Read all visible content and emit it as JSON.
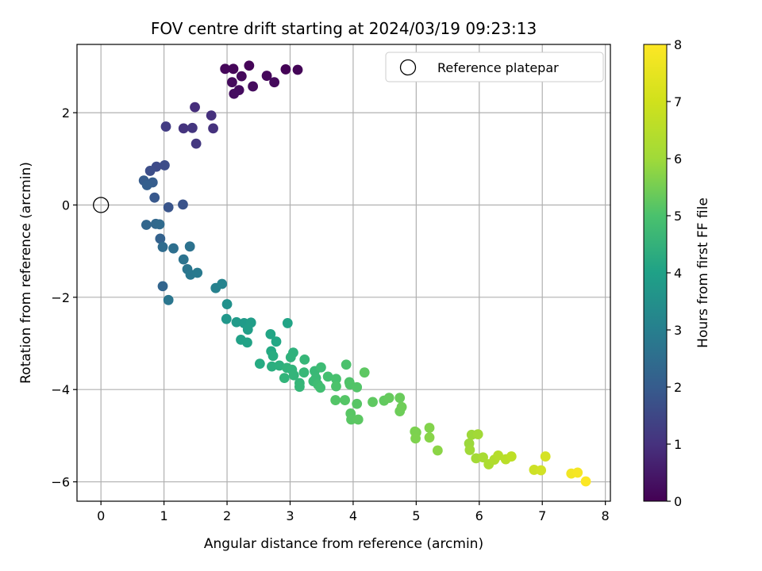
{
  "chart_data": {
    "type": "scatter",
    "title": "FOV centre drift starting at 2024/03/19 09:23:13",
    "xlabel": "Angular distance from reference (arcmin)",
    "ylabel": "Rotation from reference (arcmin)",
    "xlim": [
      -0.38,
      8.08
    ],
    "ylim": [
      -6.42,
      3.48
    ],
    "x_ticks": [
      0,
      1,
      2,
      3,
      4,
      5,
      6,
      7,
      8
    ],
    "y_ticks": [
      -6,
      -4,
      -2,
      0,
      2
    ],
    "grid": true,
    "legend": {
      "position": "top-right",
      "entries": [
        "Reference platepar"
      ]
    },
    "reference_point": {
      "x": 0,
      "y": 0,
      "marker": "open-circle",
      "label": "Reference platepar"
    },
    "colormap": "viridis",
    "colorbar": {
      "label": "Hours from first FF file",
      "range": [
        0,
        8
      ],
      "ticks": [
        0,
        1,
        2,
        3,
        4,
        5,
        6,
        7,
        8
      ]
    },
    "points": [
      {
        "x": 2.93,
        "y": 2.94,
        "t": 0.05
      },
      {
        "x": 3.12,
        "y": 2.93,
        "t": 0.08
      },
      {
        "x": 2.35,
        "y": 3.02,
        "t": 0.1
      },
      {
        "x": 2.1,
        "y": 2.95,
        "t": 0.12
      },
      {
        "x": 1.97,
        "y": 2.95,
        "t": 0.14
      },
      {
        "x": 2.63,
        "y": 2.8,
        "t": 0.16
      },
      {
        "x": 2.23,
        "y": 2.79,
        "t": 0.18
      },
      {
        "x": 2.75,
        "y": 2.66,
        "t": 0.2
      },
      {
        "x": 2.08,
        "y": 2.66,
        "t": 0.22
      },
      {
        "x": 2.41,
        "y": 2.57,
        "t": 0.24
      },
      {
        "x": 2.19,
        "y": 2.49,
        "t": 0.26
      },
      {
        "x": 2.11,
        "y": 2.41,
        "t": 0.28
      },
      {
        "x": 1.49,
        "y": 2.12,
        "t": 1.05
      },
      {
        "x": 1.75,
        "y": 1.94,
        "t": 1.1
      },
      {
        "x": 1.03,
        "y": 1.7,
        "t": 1.4
      },
      {
        "x": 1.31,
        "y": 1.66,
        "t": 1.2
      },
      {
        "x": 1.45,
        "y": 1.67,
        "t": 1.25
      },
      {
        "x": 1.78,
        "y": 1.66,
        "t": 1.15
      },
      {
        "x": 1.51,
        "y": 1.33,
        "t": 1.3
      },
      {
        "x": 1.01,
        "y": 0.86,
        "t": 1.85
      },
      {
        "x": 0.88,
        "y": 0.83,
        "t": 1.8
      },
      {
        "x": 0.78,
        "y": 0.74,
        "t": 1.9
      },
      {
        "x": 0.68,
        "y": 0.53,
        "t": 2.3
      },
      {
        "x": 0.82,
        "y": 0.49,
        "t": 2.35
      },
      {
        "x": 0.73,
        "y": 0.43,
        "t": 2.4
      },
      {
        "x": 0.85,
        "y": 0.16,
        "t": 2.2
      },
      {
        "x": 1.07,
        "y": -0.05,
        "t": 2.1
      },
      {
        "x": 1.3,
        "y": 0.01,
        "t": 2.05
      },
      {
        "x": 0.72,
        "y": -0.43,
        "t": 2.65
      },
      {
        "x": 0.87,
        "y": -0.41,
        "t": 2.7
      },
      {
        "x": 0.93,
        "y": -0.42,
        "t": 2.75
      },
      {
        "x": 0.94,
        "y": -0.73,
        "t": 2.5
      },
      {
        "x": 0.98,
        "y": -0.91,
        "t": 2.8
      },
      {
        "x": 1.15,
        "y": -0.94,
        "t": 2.9
      },
      {
        "x": 1.41,
        "y": -0.9,
        "t": 3.0
      },
      {
        "x": 1.31,
        "y": -1.18,
        "t": 3.05
      },
      {
        "x": 1.37,
        "y": -1.39,
        "t": 3.1
      },
      {
        "x": 1.42,
        "y": -1.51,
        "t": 3.2
      },
      {
        "x": 1.53,
        "y": -1.47,
        "t": 3.25
      },
      {
        "x": 0.98,
        "y": -1.76,
        "t": 2.6
      },
      {
        "x": 1.07,
        "y": -2.06,
        "t": 3.15
      },
      {
        "x": 1.82,
        "y": -1.8,
        "t": 3.5
      },
      {
        "x": 1.92,
        "y": -1.71,
        "t": 3.55
      },
      {
        "x": 2.0,
        "y": -2.15,
        "t": 4.0
      },
      {
        "x": 1.99,
        "y": -2.47,
        "t": 4.2
      },
      {
        "x": 2.15,
        "y": -2.54,
        "t": 4.3
      },
      {
        "x": 2.27,
        "y": -2.56,
        "t": 4.35
      },
      {
        "x": 2.38,
        "y": -2.55,
        "t": 4.4
      },
      {
        "x": 2.33,
        "y": -2.7,
        "t": 4.45
      },
      {
        "x": 2.22,
        "y": -2.92,
        "t": 4.55
      },
      {
        "x": 2.32,
        "y": -2.98,
        "t": 4.6
      },
      {
        "x": 2.52,
        "y": -3.44,
        "t": 4.9
      },
      {
        "x": 2.69,
        "y": -2.8,
        "t": 4.7
      },
      {
        "x": 2.78,
        "y": -2.96,
        "t": 4.75
      },
      {
        "x": 2.7,
        "y": -3.17,
        "t": 4.85
      },
      {
        "x": 2.73,
        "y": -3.27,
        "t": 4.95
      },
      {
        "x": 2.71,
        "y": -3.5,
        "t": 5.0
      },
      {
        "x": 2.83,
        "y": -3.48,
        "t": 5.05
      },
      {
        "x": 2.96,
        "y": -2.56,
        "t": 4.65
      },
      {
        "x": 3.05,
        "y": -3.2,
        "t": 5.1
      },
      {
        "x": 3.01,
        "y": -3.3,
        "t": 5.12
      },
      {
        "x": 2.95,
        "y": -3.53,
        "t": 5.15
      },
      {
        "x": 3.03,
        "y": -3.57,
        "t": 5.18
      },
      {
        "x": 2.91,
        "y": -3.75,
        "t": 5.2
      },
      {
        "x": 3.06,
        "y": -3.69,
        "t": 5.22
      },
      {
        "x": 3.15,
        "y": -3.86,
        "t": 5.25
      },
      {
        "x": 3.15,
        "y": -3.94,
        "t": 5.28
      },
      {
        "x": 3.23,
        "y": -3.35,
        "t": 5.3
      },
      {
        "x": 3.22,
        "y": -3.63,
        "t": 5.32
      },
      {
        "x": 3.39,
        "y": -3.6,
        "t": 5.35
      },
      {
        "x": 3.41,
        "y": -3.75,
        "t": 5.38
      },
      {
        "x": 3.37,
        "y": -3.82,
        "t": 5.4
      },
      {
        "x": 3.49,
        "y": -3.52,
        "t": 5.45
      },
      {
        "x": 3.44,
        "y": -3.89,
        "t": 5.5
      },
      {
        "x": 3.48,
        "y": -3.96,
        "t": 5.55
      },
      {
        "x": 3.6,
        "y": -3.72,
        "t": 5.6
      },
      {
        "x": 3.73,
        "y": -3.77,
        "t": 5.65
      },
      {
        "x": 3.89,
        "y": -3.46,
        "t": 5.7
      },
      {
        "x": 3.73,
        "y": -3.93,
        "t": 5.72
      },
      {
        "x": 3.94,
        "y": -3.84,
        "t": 5.75
      },
      {
        "x": 3.95,
        "y": -3.89,
        "t": 5.78
      },
      {
        "x": 4.06,
        "y": -3.95,
        "t": 5.8
      },
      {
        "x": 3.72,
        "y": -4.23,
        "t": 5.82
      },
      {
        "x": 3.87,
        "y": -4.23,
        "t": 5.85
      },
      {
        "x": 4.06,
        "y": -4.31,
        "t": 5.88
      },
      {
        "x": 3.96,
        "y": -4.52,
        "t": 5.9
      },
      {
        "x": 3.97,
        "y": -4.65,
        "t": 5.92
      },
      {
        "x": 4.08,
        "y": -4.65,
        "t": 5.95
      },
      {
        "x": 4.18,
        "y": -3.63,
        "t": 5.97
      },
      {
        "x": 4.31,
        "y": -4.27,
        "t": 6.0
      },
      {
        "x": 4.49,
        "y": -4.24,
        "t": 6.05
      },
      {
        "x": 4.57,
        "y": -4.18,
        "t": 6.1
      },
      {
        "x": 4.74,
        "y": -4.18,
        "t": 6.15
      },
      {
        "x": 4.74,
        "y": -4.47,
        "t": 6.2
      },
      {
        "x": 4.77,
        "y": -4.38,
        "t": 6.22
      },
      {
        "x": 4.98,
        "y": -4.91,
        "t": 6.4
      },
      {
        "x": 5.0,
        "y": -4.93,
        "t": 6.42
      },
      {
        "x": 4.99,
        "y": -5.06,
        "t": 6.45
      },
      {
        "x": 5.21,
        "y": -4.83,
        "t": 6.5
      },
      {
        "x": 5.21,
        "y": -5.04,
        "t": 6.55
      },
      {
        "x": 5.34,
        "y": -5.32,
        "t": 6.6
      },
      {
        "x": 5.84,
        "y": -5.17,
        "t": 6.8
      },
      {
        "x": 5.88,
        "y": -4.98,
        "t": 6.82
      },
      {
        "x": 5.85,
        "y": -5.31,
        "t": 6.85
      },
      {
        "x": 5.98,
        "y": -4.97,
        "t": 6.88
      },
      {
        "x": 5.95,
        "y": -5.49,
        "t": 6.9
      },
      {
        "x": 6.06,
        "y": -5.47,
        "t": 6.95
      },
      {
        "x": 6.15,
        "y": -5.62,
        "t": 7.0
      },
      {
        "x": 6.24,
        "y": -5.52,
        "t": 7.05
      },
      {
        "x": 6.3,
        "y": -5.43,
        "t": 7.1
      },
      {
        "x": 6.42,
        "y": -5.51,
        "t": 7.15
      },
      {
        "x": 6.51,
        "y": -5.45,
        "t": 7.2
      },
      {
        "x": 6.87,
        "y": -5.74,
        "t": 7.4
      },
      {
        "x": 6.98,
        "y": -5.75,
        "t": 7.45
      },
      {
        "x": 7.05,
        "y": -5.45,
        "t": 7.5
      },
      {
        "x": 7.46,
        "y": -5.82,
        "t": 7.85
      },
      {
        "x": 7.56,
        "y": -5.8,
        "t": 7.9
      },
      {
        "x": 7.69,
        "y": -5.99,
        "t": 7.98
      }
    ]
  }
}
